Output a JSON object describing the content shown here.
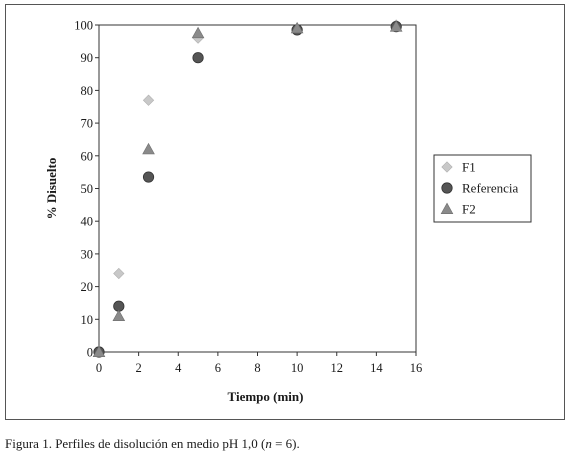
{
  "chart_data": {
    "type": "scatter",
    "xlabel": "Tiempo (min)",
    "ylabel": "% Disuelto",
    "xlim": [
      0,
      16
    ],
    "ylim": [
      0,
      100
    ],
    "xticks": [
      0,
      2,
      4,
      6,
      8,
      10,
      12,
      14,
      16
    ],
    "yticks": [
      0,
      10,
      20,
      30,
      40,
      50,
      60,
      70,
      80,
      90,
      100
    ],
    "grid": false,
    "legend_position": "right",
    "series": [
      {
        "name": "F1",
        "marker": "diamond",
        "color": "#c8c8c8",
        "x": [
          0,
          1,
          2.5,
          5,
          10,
          15
        ],
        "y": [
          0,
          24,
          77,
          96,
          99,
          100
        ]
      },
      {
        "name": "Referencia",
        "marker": "circle",
        "color": "#555555",
        "x": [
          0,
          1,
          2.5,
          5,
          10,
          15
        ],
        "y": [
          0,
          14,
          53.5,
          90,
          98.5,
          99.5
        ]
      },
      {
        "name": "F2",
        "marker": "triangle",
        "color": "#8a8a8a",
        "x": [
          0,
          1,
          2.5,
          5,
          10,
          15
        ],
        "y": [
          0,
          11,
          62,
          97.5,
          99,
          99.5
        ]
      }
    ]
  },
  "caption": {
    "prefix": "Figura 1. Perfiles de disolución en medio pH 1,0 (",
    "n_symbol": "n",
    "suffix": " = 6)."
  }
}
